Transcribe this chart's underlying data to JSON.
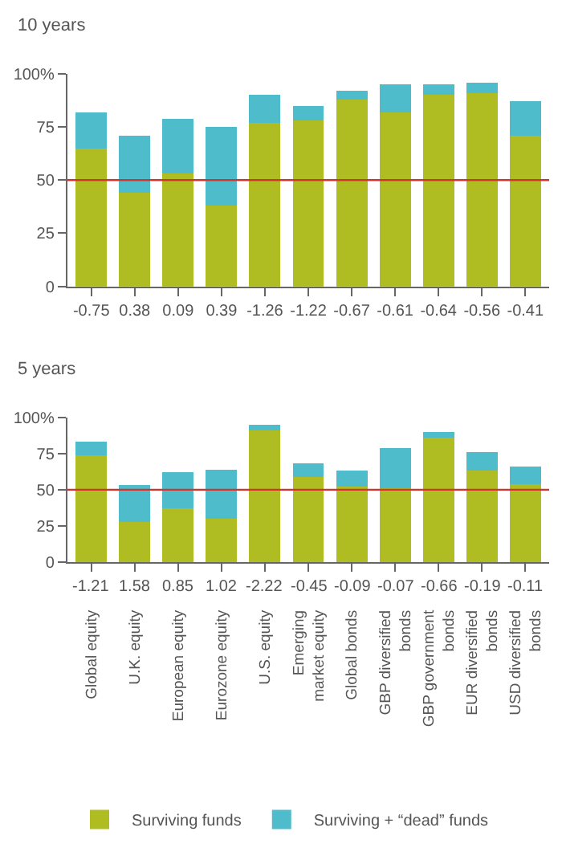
{
  "chart_data": [
    {
      "type": "bar",
      "title": "10 years",
      "stacked": true,
      "categories": [
        "-0.75",
        "0.38",
        "0.09",
        "0.39",
        "-1.26",
        "-1.22",
        "-0.67",
        "-0.61",
        "-0.64",
        "-0.56",
        "-0.41"
      ],
      "series": [
        {
          "color": "#afbd22",
          "values": [
            65,
            44,
            53,
            38,
            77,
            78,
            88,
            82,
            90,
            91,
            71
          ]
        },
        {
          "color": "#4ebcca",
          "values": [
            17,
            27,
            26,
            37,
            13,
            7,
            4,
            13,
            5,
            5,
            16
          ]
        }
      ],
      "ylim": [
        0,
        100
      ],
      "yticks": [
        0,
        25,
        50,
        75,
        {
          "value": 100,
          "label": "100%"
        }
      ],
      "legend": false,
      "ref_lines": [
        {
          "axis": "y",
          "value": 50,
          "color": "#d0342c"
        }
      ]
    },
    {
      "type": "bar",
      "title": "5 years",
      "stacked": true,
      "categories": [
        "Global equity",
        "U.K. equity",
        "European equity",
        "Eurozone equity",
        "U.S. equity",
        "Emerging market equity",
        "Global bonds",
        "GBP diversified bonds",
        "GBP government bonds",
        "EUR diversified bonds",
        "USD diversified bonds"
      ],
      "series": [
        {
          "name": "Surviving funds",
          "color": "#afbd22",
          "values": [
            74,
            28,
            37,
            30,
            91,
            59,
            52,
            51,
            86,
            63,
            54
          ]
        },
        {
          "name": "Surviving + “dead” funds",
          "color": "#4ebcca",
          "values": [
            9,
            25,
            25,
            34,
            4,
            9,
            11,
            28,
            4,
            13,
            12
          ]
        }
      ],
      "annotations": [
        {
          "text": "-1.21",
          "x": "Global equity"
        },
        {
          "text": "1.58",
          "x": "U.K. equity"
        },
        {
          "text": "0.85",
          "x": "European equity"
        },
        {
          "text": "1.02",
          "x": "Eurozone equity"
        },
        {
          "text": "-2.22",
          "x": "U.S. equity"
        },
        {
          "text": "-0.45",
          "x": "Emerging market equity"
        },
        {
          "text": "-0.09",
          "x": "Global bonds"
        },
        {
          "text": "-0.07",
          "x": "GBP diversified bonds"
        },
        {
          "text": "-0.66",
          "x": "GBP government bonds"
        },
        {
          "text": "-0.19",
          "x": "EUR diversified bonds"
        },
        {
          "text": "-0.11",
          "x": "USD diversified bonds"
        }
      ],
      "ylim": [
        0,
        100
      ],
      "yticks": [
        0,
        25,
        50,
        75,
        {
          "value": 100,
          "label": "100%"
        }
      ],
      "legend": "bottom",
      "ref_lines": [
        {
          "axis": "y",
          "value": 50,
          "color": "#d0342c"
        }
      ]
    }
  ]
}
